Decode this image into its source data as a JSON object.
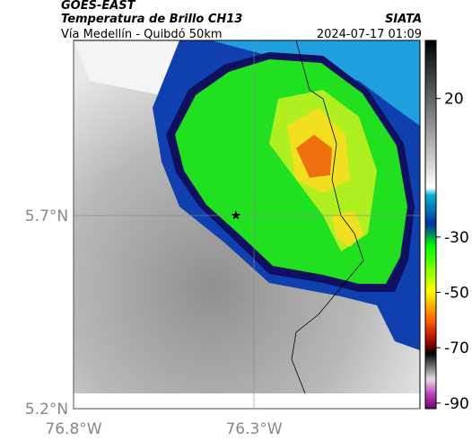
{
  "header": {
    "satellite": "GOES-EAST",
    "product": "Temperatura de Brillo CH13",
    "source": "SIATA",
    "route": "Vía Medellín - Quibdó 50km",
    "timestamp": "2024-07-17 01:09"
  },
  "map": {
    "lon_range": [
      -76.8,
      -75.84
    ],
    "lat_range": [
      5.2,
      6.153
    ],
    "lon_ticks": [
      {
        "value": -76.8,
        "label": "76.8°W"
      },
      {
        "value": -76.3,
        "label": "76.3°W"
      }
    ],
    "lat_ticks": [
      {
        "value": 5.7,
        "label": "5.7°N"
      },
      {
        "value": 5.2,
        "label": "5.2°N"
      }
    ],
    "grid": true,
    "marker": {
      "lon": -76.35,
      "lat": 5.7
    }
  },
  "colorbar": {
    "range": [
      -92,
      41
    ],
    "ticks": [
      20,
      -30,
      -50,
      -70,
      -90
    ]
  }
}
